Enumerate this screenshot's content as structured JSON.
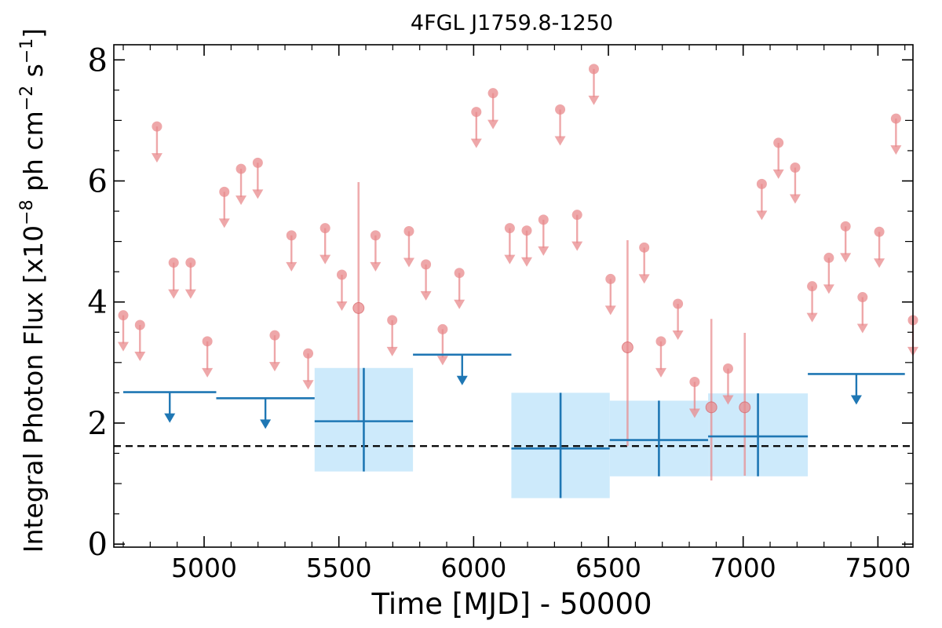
{
  "chart_data": {
    "type": "scatter",
    "title": "4FGL J1759.8-1250",
    "xlabel": "Time [MJD] - 50000",
    "ylabel": "Integral Photon Flux [x10^{-8} ph cm^{-2} s^{-1}]",
    "ylabel_parts": {
      "prefix": "Integral Photon Flux [x10",
      "exp1": "−8",
      "mid1": " ph cm",
      "exp2": "−2",
      "mid2": " s",
      "exp3": "−1",
      "suffix": "]"
    },
    "xlim": [
      4665,
      7630
    ],
    "ylim": [
      -0.05,
      8.25
    ],
    "xticks": [
      5000,
      5500,
      6000,
      6500,
      7000,
      7500
    ],
    "yticks": [
      0,
      2,
      4,
      6,
      8
    ],
    "grid": false,
    "reference_line": {
      "y": 1.62,
      "style": "dashed",
      "color": "#000000"
    },
    "colors": {
      "monthly": "#e8898c",
      "yearly": "#1f77b4",
      "yearly_band": "#cdeafb"
    },
    "series": [
      {
        "kind": "monthly",
        "upper_limits": [
          {
            "x": 4700,
            "y": 3.78
          },
          {
            "x": 4762,
            "y": 3.62
          },
          {
            "x": 4825,
            "y": 6.9
          },
          {
            "x": 4887,
            "y": 4.65
          },
          {
            "x": 4950,
            "y": 4.65
          },
          {
            "x": 5012,
            "y": 3.35
          },
          {
            "x": 5075,
            "y": 5.82
          },
          {
            "x": 5137,
            "y": 6.2
          },
          {
            "x": 5199,
            "y": 6.3
          },
          {
            "x": 5262,
            "y": 3.45
          },
          {
            "x": 5324,
            "y": 5.1
          },
          {
            "x": 5386,
            "y": 3.15
          },
          {
            "x": 5449,
            "y": 5.22
          },
          {
            "x": 5511,
            "y": 4.45
          },
          {
            "x": 5636,
            "y": 5.1
          },
          {
            "x": 5698,
            "y": 3.7
          },
          {
            "x": 5760,
            "y": 5.17
          },
          {
            "x": 5823,
            "y": 4.62
          },
          {
            "x": 5885,
            "y": 3.55
          },
          {
            "x": 5947,
            "y": 4.48
          },
          {
            "x": 6010,
            "y": 7.14
          },
          {
            "x": 6072,
            "y": 7.45
          },
          {
            "x": 6134,
            "y": 5.22
          },
          {
            "x": 6197,
            "y": 5.18
          },
          {
            "x": 6259,
            "y": 5.36
          },
          {
            "x": 6321,
            "y": 7.18
          },
          {
            "x": 6384,
            "y": 5.44
          },
          {
            "x": 6446,
            "y": 7.85
          },
          {
            "x": 6508,
            "y": 4.38
          },
          {
            "x": 6633,
            "y": 4.9
          },
          {
            "x": 6695,
            "y": 3.35
          },
          {
            "x": 6758,
            "y": 3.97
          },
          {
            "x": 6820,
            "y": 2.68
          },
          {
            "x": 6944,
            "y": 2.9
          },
          {
            "x": 7069,
            "y": 5.95
          },
          {
            "x": 7131,
            "y": 6.63
          },
          {
            "x": 7193,
            "y": 6.22
          },
          {
            "x": 7256,
            "y": 4.26
          },
          {
            "x": 7318,
            "y": 4.73
          },
          {
            "x": 7380,
            "y": 5.25
          },
          {
            "x": 7443,
            "y": 4.08
          },
          {
            "x": 7505,
            "y": 5.16
          },
          {
            "x": 7567,
            "y": 7.03
          },
          {
            "x": 7630,
            "y": 3.7
          }
        ],
        "detections": [
          {
            "x": 5573,
            "y": 3.9,
            "ylo": 2.02,
            "yhi": 5.98
          },
          {
            "x": 6571,
            "y": 3.25,
            "ylo": 1.62,
            "yhi": 5.02
          },
          {
            "x": 6882,
            "y": 2.26,
            "ylo": 1.05,
            "yhi": 3.72
          },
          {
            "x": 7006,
            "y": 2.26,
            "ylo": 1.13,
            "yhi": 3.49
          }
        ]
      },
      {
        "kind": "yearly",
        "upper_limits": [
          {
            "x0": 4700,
            "x1": 5045,
            "y": 2.51
          },
          {
            "x0": 5045,
            "x1": 5410,
            "y": 2.41
          },
          {
            "x0": 5775,
            "x1": 6140,
            "y": 3.13
          },
          {
            "x0": 7240,
            "x1": 7600,
            "y": 2.81
          }
        ],
        "detections": [
          {
            "x0": 5410,
            "x1": 5775,
            "y": 2.03,
            "ylo": 1.2,
            "yhi": 2.91
          },
          {
            "x0": 6140,
            "x1": 6505,
            "y": 1.58,
            "ylo": 0.76,
            "yhi": 2.5
          },
          {
            "x0": 6505,
            "x1": 6870,
            "y": 1.72,
            "ylo": 1.12,
            "yhi": 2.37
          },
          {
            "x0": 6870,
            "x1": 7240,
            "y": 1.78,
            "ylo": 1.12,
            "yhi": 2.49
          }
        ]
      }
    ]
  }
}
